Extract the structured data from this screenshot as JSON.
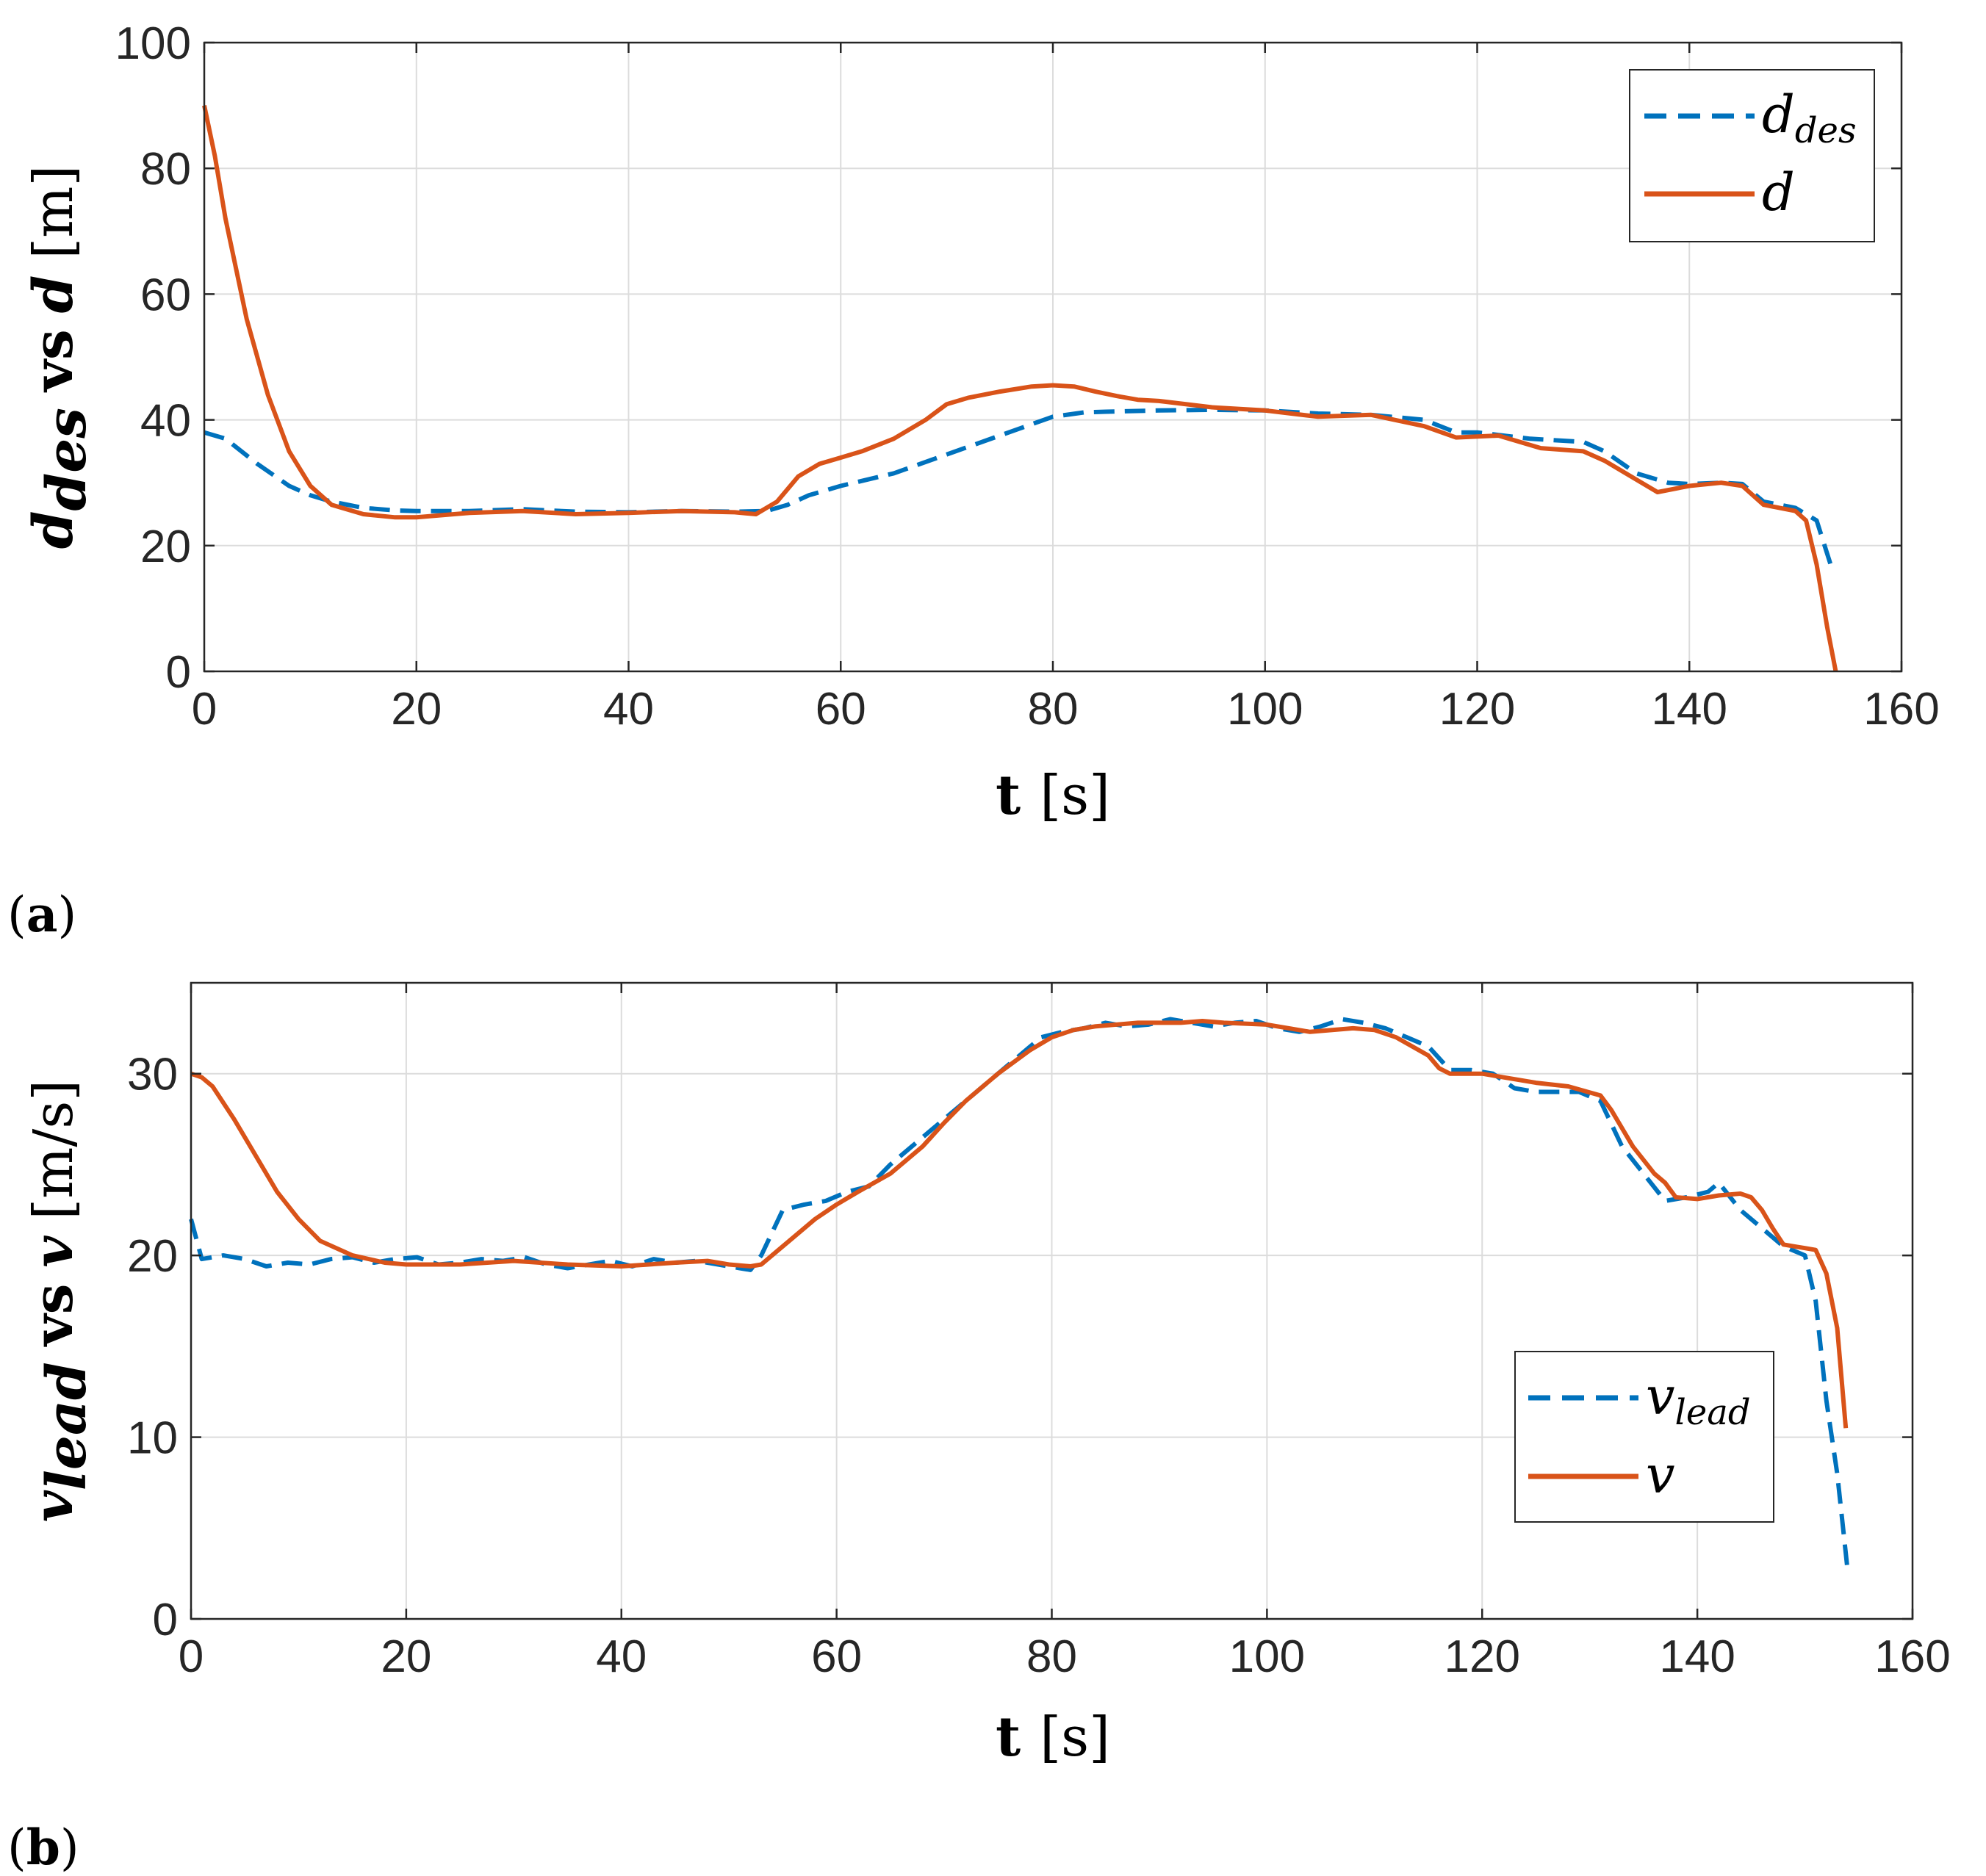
{
  "chart_data": [
    {
      "type": "line",
      "panel_label": "a",
      "xlabel": "t",
      "xlabel_unit": "[s]",
      "ylabel_main": "d",
      "ylabel_sub": "des",
      "ylabel_vs": "vs",
      "ylabel_var": "d",
      "ylabel_unit": "[m]",
      "xlim": [
        0,
        160
      ],
      "ylim": [
        0,
        100
      ],
      "xticks": [
        0,
        20,
        40,
        60,
        80,
        100,
        120,
        140,
        160
      ],
      "yticks": [
        0,
        20,
        40,
        60,
        80,
        100
      ],
      "grid": true,
      "legend_position": "top-right",
      "series": [
        {
          "name": "d_des",
          "legend_main": "d",
          "legend_sub": "des",
          "style": "dashed",
          "color": "#0072BD",
          "x": [
            0,
            2,
            5,
            8,
            10,
            12,
            15,
            18,
            20,
            25,
            30,
            35,
            40,
            45,
            50,
            53,
            55,
            57,
            60,
            65,
            70,
            75,
            80,
            83,
            85,
            90,
            95,
            100,
            105,
            110,
            115,
            118,
            120,
            125,
            130,
            132,
            135,
            138,
            140,
            143,
            145,
            147,
            150,
            152,
            153.5
          ],
          "y": [
            38,
            37,
            33,
            29.5,
            28,
            27,
            26,
            25.6,
            25.5,
            25.5,
            25.8,
            25.4,
            25.3,
            25.5,
            25.4,
            25.5,
            26.5,
            28,
            29.5,
            31.5,
            34.5,
            37.5,
            40.5,
            41.2,
            41.3,
            41.5,
            41.6,
            41.5,
            41,
            40.8,
            40,
            38,
            38,
            37,
            36.5,
            35,
            31.5,
            30,
            29.8,
            30,
            29.8,
            27,
            26,
            24,
            16
          ]
        },
        {
          "name": "d",
          "legend_main": "d",
          "legend_sub": "",
          "style": "solid",
          "color": "#D95319",
          "x": [
            0,
            1,
            2,
            4,
            6,
            8,
            10,
            12,
            15,
            18,
            20,
            25,
            30,
            35,
            40,
            45,
            50,
            52,
            54,
            56,
            58,
            60,
            62,
            65,
            68,
            70,
            72,
            75,
            78,
            80,
            82,
            84,
            86,
            88,
            90,
            95,
            100,
            105,
            110,
            115,
            118,
            122,
            126,
            130,
            132,
            135,
            137,
            140,
            143,
            145,
            147,
            150,
            151,
            152,
            153,
            153.8
          ],
          "y": [
            90,
            82,
            72,
            56,
            44,
            35,
            29.5,
            26.5,
            25,
            24.5,
            24.5,
            25.2,
            25.5,
            25,
            25.2,
            25.5,
            25.3,
            25,
            27,
            31,
            33,
            34,
            35,
            37,
            40,
            42.5,
            43.5,
            44.5,
            45.3,
            45.5,
            45.3,
            44.5,
            43.8,
            43.2,
            43,
            42,
            41.5,
            40.5,
            40.8,
            39,
            37.2,
            37.5,
            35.5,
            35,
            33.5,
            30.5,
            28.5,
            29.5,
            30,
            29.5,
            26.5,
            25.5,
            24,
            17,
            7,
            0
          ]
        }
      ]
    },
    {
      "type": "line",
      "panel_label": "b",
      "xlabel": "t",
      "xlabel_unit": "[s]",
      "ylabel_main": "v",
      "ylabel_sub": "lead",
      "ylabel_vs": "vs",
      "ylabel_var": "v",
      "ylabel_unit": "[m/s]",
      "xlim": [
        0,
        160
      ],
      "ylim": [
        0,
        35
      ],
      "xticks": [
        0,
        20,
        40,
        60,
        80,
        100,
        120,
        140,
        160
      ],
      "yticks": [
        0,
        10,
        20,
        30
      ],
      "grid": true,
      "legend_position": "bottom-right",
      "series": [
        {
          "name": "v_lead",
          "legend_main": "v",
          "legend_sub": "lead",
          "style": "dashed",
          "color": "#0072BD",
          "x": [
            0,
            1,
            3,
            5,
            7,
            9,
            11,
            13,
            15,
            17,
            19,
            21,
            23,
            25,
            27,
            29,
            31,
            33,
            35,
            37,
            39,
            41,
            43,
            45,
            47,
            49,
            51,
            52,
            53,
            55,
            57,
            59,
            61,
            63,
            65,
            67,
            69,
            71,
            73,
            75,
            77,
            79,
            81,
            83,
            85,
            87,
            89,
            91,
            93,
            95,
            97,
            99,
            101,
            103,
            105,
            107,
            109,
            111,
            113,
            115,
            117,
            119,
            121,
            123,
            125,
            127,
            129,
            131,
            133,
            135,
            137,
            139,
            141,
            142,
            144,
            146,
            148,
            150,
            151,
            152,
            153,
            154
          ],
          "y": [
            22,
            19.8,
            20,
            19.8,
            19.4,
            19.6,
            19.5,
            19.8,
            19.9,
            19.6,
            19.8,
            19.9,
            19.5,
            19.6,
            19.8,
            19.7,
            19.9,
            19.5,
            19.3,
            19.5,
            19.7,
            19.4,
            19.8,
            19.6,
            19.7,
            19.5,
            19.3,
            19.2,
            20,
            22.5,
            22.8,
            23,
            23.5,
            23.8,
            25,
            26,
            27,
            28,
            29,
            30,
            31,
            32,
            32.3,
            32.5,
            32.8,
            32.6,
            32.7,
            33,
            32.8,
            32.6,
            32.8,
            32.9,
            32.5,
            32.3,
            32.6,
            33,
            32.8,
            32.5,
            32,
            31.5,
            30.2,
            30.2,
            30,
            29.2,
            29,
            29,
            29,
            28.5,
            26,
            24.5,
            23,
            23.2,
            23.5,
            24,
            22.5,
            21.5,
            20.5,
            20,
            17.5,
            12,
            8,
            2.5
          ]
        },
        {
          "name": "v",
          "legend_main": "v",
          "legend_sub": "",
          "style": "solid",
          "color": "#D95319",
          "x": [
            0,
            1,
            2,
            4,
            6,
            8,
            10,
            12,
            15,
            18,
            20,
            25,
            30,
            35,
            40,
            45,
            48,
            50,
            52,
            53,
            54,
            56,
            58,
            60,
            62,
            65,
            68,
            70,
            72,
            75,
            78,
            80,
            82,
            84,
            88,
            92,
            94,
            96,
            100,
            104,
            108,
            110,
            112,
            115,
            116,
            117,
            120,
            122,
            125,
            128,
            131,
            132,
            134,
            136,
            137,
            138,
            140,
            142,
            144,
            145,
            146,
            147,
            148,
            149,
            150,
            151,
            152,
            153,
            153.8
          ],
          "y": [
            30,
            29.8,
            29.3,
            27.5,
            25.5,
            23.5,
            22,
            20.8,
            20,
            19.6,
            19.5,
            19.5,
            19.7,
            19.5,
            19.4,
            19.6,
            19.7,
            19.5,
            19.4,
            19.5,
            20,
            21,
            22,
            22.8,
            23.5,
            24.5,
            26,
            27.3,
            28.5,
            30,
            31.3,
            32,
            32.4,
            32.6,
            32.8,
            32.8,
            32.9,
            32.8,
            32.7,
            32.3,
            32.5,
            32.4,
            32,
            31,
            30.3,
            30,
            30,
            29.8,
            29.5,
            29.3,
            28.8,
            28,
            26,
            24.5,
            24,
            23.2,
            23.1,
            23.3,
            23.4,
            23.2,
            22.5,
            21.5,
            20.6,
            20.5,
            20.4,
            20.3,
            19,
            16,
            10.5
          ]
        }
      ]
    }
  ]
}
